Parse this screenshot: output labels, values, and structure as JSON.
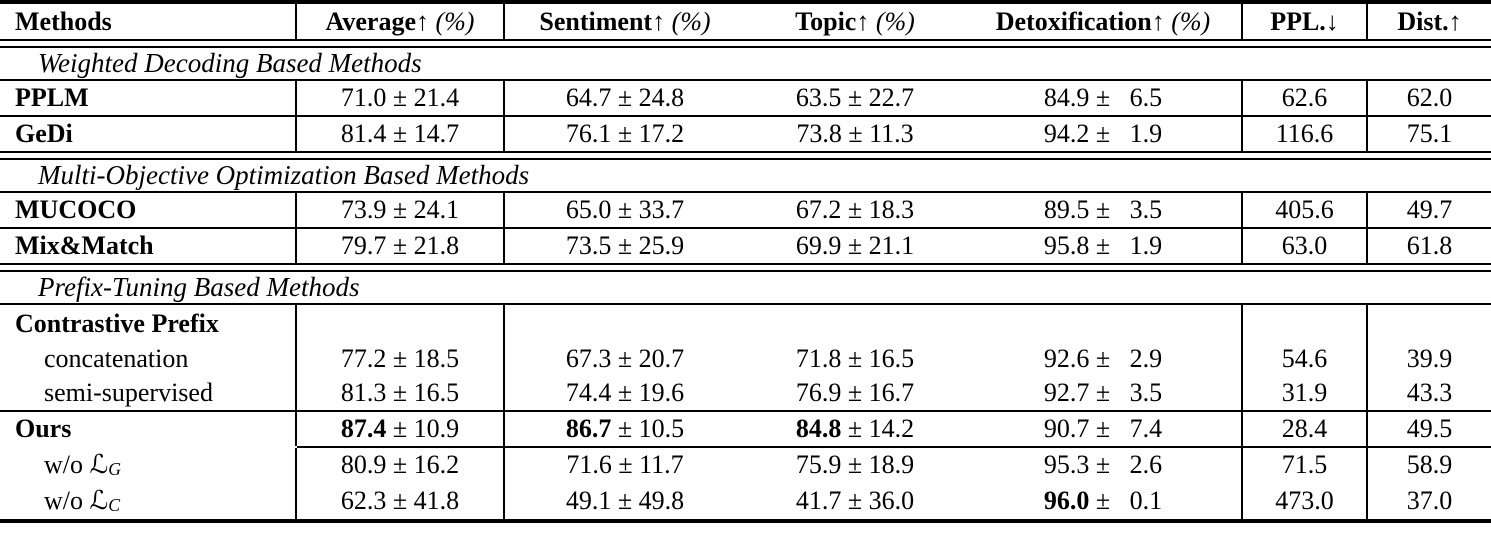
{
  "table": {
    "columns": [
      {
        "label": "Methods",
        "arrow": "",
        "suffix": ""
      },
      {
        "label": "Average",
        "arrow": "↑",
        "suffix": "(%)"
      },
      {
        "label": "Sentiment",
        "arrow": "↑",
        "suffix": "(%)"
      },
      {
        "label": "Topic",
        "arrow": "↑",
        "suffix": "(%)"
      },
      {
        "label": "Detoxification",
        "arrow": "↑",
        "suffix": "(%)"
      },
      {
        "label": "PPL.",
        "arrow": "↓",
        "suffix": ""
      },
      {
        "label": "Dist.",
        "arrow": "↑",
        "suffix": ""
      }
    ],
    "plus_minus": "±",
    "rows": [
      {
        "type": "section",
        "label": "Weighted Decoding Based Methods",
        "rule_after": "single"
      },
      {
        "type": "data",
        "method": "PPLM",
        "bold_method": true,
        "cells": [
          [
            "71.0",
            "21.4"
          ],
          [
            "64.7",
            "24.8"
          ],
          [
            "63.5",
            "22.7"
          ],
          [
            "84.9",
            " 6.5"
          ],
          [
            "62.6"
          ],
          [
            "62.0"
          ]
        ],
        "bold_cells": [],
        "rule_after": "single"
      },
      {
        "type": "data",
        "method": "GeDi",
        "bold_method": true,
        "cells": [
          [
            "81.4",
            "14.7"
          ],
          [
            "76.1",
            "17.2"
          ],
          [
            "73.8",
            "11.3"
          ],
          [
            "94.2",
            " 1.9"
          ],
          [
            "116.6"
          ],
          [
            "75.1"
          ]
        ],
        "bold_cells": [],
        "rule_after": "double"
      },
      {
        "type": "section",
        "label": "Multi-Objective Optimization Based Methods",
        "rule_after": "single"
      },
      {
        "type": "data",
        "method": "MUCOCO",
        "bold_method": true,
        "cells": [
          [
            "73.9",
            "24.1"
          ],
          [
            "65.0",
            "33.7"
          ],
          [
            "67.2",
            "18.3"
          ],
          [
            "89.5",
            " 3.5"
          ],
          [
            "405.6"
          ],
          [
            "49.7"
          ]
        ],
        "bold_cells": [],
        "rule_after": "single"
      },
      {
        "type": "data",
        "method": "Mix&Match",
        "bold_method": true,
        "cells": [
          [
            "79.7",
            "21.8"
          ],
          [
            "73.5",
            "25.9"
          ],
          [
            "69.9",
            "21.1"
          ],
          [
            "95.8",
            " 1.9"
          ],
          [
            "63.0"
          ],
          [
            "61.8"
          ]
        ],
        "bold_cells": [],
        "rule_after": "double"
      },
      {
        "type": "section",
        "label": "Prefix-Tuning Based Methods",
        "rule_after": "single"
      },
      {
        "type": "data",
        "method": "Contrastive Prefix",
        "bold_method": true,
        "cells": [
          [],
          [],
          [],
          [],
          [],
          []
        ],
        "bold_cells": [],
        "rule_after": "none",
        "tall": true
      },
      {
        "type": "data",
        "method": "concatenation",
        "bold_method": false,
        "indent": true,
        "cells": [
          [
            "77.2",
            "18.5"
          ],
          [
            "67.3",
            "20.7"
          ],
          [
            "71.8",
            "16.5"
          ],
          [
            "92.6",
            " 2.9"
          ],
          [
            "54.6"
          ],
          [
            "39.9"
          ]
        ],
        "bold_cells": [],
        "rule_after": "none"
      },
      {
        "type": "data",
        "method": "semi-supervised",
        "bold_method": false,
        "indent": true,
        "cells": [
          [
            "81.3",
            "16.5"
          ],
          [
            "74.4",
            "19.6"
          ],
          [
            "76.9",
            "16.7"
          ],
          [
            "92.7",
            " 3.5"
          ],
          [
            "31.9"
          ],
          [
            "43.3"
          ]
        ],
        "bold_cells": [],
        "rule_after": "single"
      },
      {
        "type": "data",
        "method": "Ours",
        "bold_method": true,
        "cells": [
          [
            "87.4",
            "10.9"
          ],
          [
            "86.7",
            "10.5"
          ],
          [
            "84.8",
            "14.2"
          ],
          [
            "90.7",
            " 7.4"
          ],
          [
            "28.4"
          ],
          [
            "49.5"
          ]
        ],
        "bold_cells": [
          0,
          1,
          2
        ],
        "rule_after": "cline"
      },
      {
        "type": "data",
        "method": "w/o ",
        "method_math": "ℒ",
        "method_sub": "G",
        "bold_method": false,
        "indent": true,
        "cells": [
          [
            "80.9",
            "16.2"
          ],
          [
            "71.6",
            "11.7"
          ],
          [
            "75.9",
            "18.9"
          ],
          [
            "95.3",
            " 2.6"
          ],
          [
            "71.5"
          ],
          [
            "58.9"
          ]
        ],
        "bold_cells": [],
        "rule_after": "none"
      },
      {
        "type": "data",
        "method": "w/o ",
        "method_math": "ℒ",
        "method_sub": "C",
        "bold_method": false,
        "indent": true,
        "cells": [
          [
            "62.3",
            "41.8"
          ],
          [
            "49.1",
            "49.8"
          ],
          [
            "41.7",
            "36.0"
          ],
          [
            "96.0",
            " 0.1"
          ],
          [
            "473.0"
          ],
          [
            "37.0"
          ]
        ],
        "bold_cells": [
          3
        ],
        "rule_after": "none",
        "tall": true
      }
    ]
  }
}
